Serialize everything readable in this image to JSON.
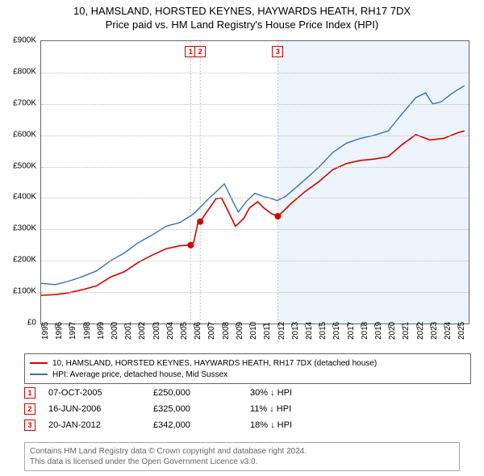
{
  "title_line1": "10, HAMSLAND, HORSTED KEYNES, HAYWARDS HEATH, RH17 7DX",
  "title_line2": "Price paid vs. HM Land Registry's House Price Index (HPI)",
  "chart": {
    "xlim": [
      1995,
      2025.8
    ],
    "ylim": [
      0,
      900
    ],
    "y_ticks": [
      0,
      100,
      200,
      300,
      400,
      500,
      600,
      700,
      800,
      900
    ],
    "y_tick_labels": [
      "£0",
      "£100K",
      "£200K",
      "£300K",
      "£400K",
      "£500K",
      "£600K",
      "£700K",
      "£800K",
      "£900K"
    ],
    "x_ticks": [
      1995,
      1996,
      1997,
      1998,
      1999,
      2000,
      2001,
      2002,
      2003,
      2004,
      2005,
      2006,
      2007,
      2008,
      2009,
      2010,
      2011,
      2012,
      2013,
      2014,
      2015,
      2016,
      2017,
      2018,
      2019,
      2020,
      2021,
      2022,
      2023,
      2024,
      2025
    ],
    "shade_start": 2012.05,
    "background": "#ffffff",
    "shade_color": "#eef4fb",
    "grid_color": "#bfbfbf",
    "series": [
      {
        "name": "paid",
        "color": "#d40000",
        "width": 1.6,
        "points": [
          [
            1995,
            90
          ],
          [
            1996,
            92
          ],
          [
            1997,
            98
          ],
          [
            1998,
            108
          ],
          [
            1999,
            120
          ],
          [
            2000,
            148
          ],
          [
            2001,
            165
          ],
          [
            2002,
            195
          ],
          [
            2003,
            218
          ],
          [
            2004,
            238
          ],
          [
            2005,
            248
          ],
          [
            2005.77,
            250
          ],
          [
            2006,
            260
          ],
          [
            2006.3,
            322
          ],
          [
            2006.46,
            325
          ],
          [
            2007,
            360
          ],
          [
            2007.6,
            398
          ],
          [
            2008,
            400
          ],
          [
            2008.5,
            355
          ],
          [
            2009,
            310
          ],
          [
            2009.6,
            335
          ],
          [
            2010,
            368
          ],
          [
            2010.6,
            388
          ],
          [
            2011,
            370
          ],
          [
            2011.6,
            350
          ],
          [
            2012.05,
            342
          ],
          [
            2012.5,
            360
          ],
          [
            2013,
            382
          ],
          [
            2014,
            420
          ],
          [
            2015,
            452
          ],
          [
            2016,
            490
          ],
          [
            2017,
            510
          ],
          [
            2018,
            520
          ],
          [
            2019,
            524
          ],
          [
            2020,
            532
          ],
          [
            2021,
            570
          ],
          [
            2022,
            602
          ],
          [
            2023,
            585
          ],
          [
            2024,
            590
          ],
          [
            2025,
            608
          ],
          [
            2025.5,
            614
          ]
        ]
      },
      {
        "name": "hpi",
        "color": "#3b6fb6",
        "width": 1.4,
        "points": [
          [
            1995,
            128
          ],
          [
            1996,
            124
          ],
          [
            1997,
            135
          ],
          [
            1998,
            150
          ],
          [
            1999,
            168
          ],
          [
            2000,
            200
          ],
          [
            2001,
            225
          ],
          [
            2002,
            258
          ],
          [
            2003,
            282
          ],
          [
            2004,
            310
          ],
          [
            2005,
            322
          ],
          [
            2006,
            350
          ],
          [
            2007,
            395
          ],
          [
            2007.8,
            428
          ],
          [
            2008.2,
            445
          ],
          [
            2008.8,
            390
          ],
          [
            2009.2,
            355
          ],
          [
            2009.8,
            390
          ],
          [
            2010.4,
            415
          ],
          [
            2011,
            405
          ],
          [
            2011.6,
            398
          ],
          [
            2012,
            392
          ],
          [
            2012.6,
            405
          ],
          [
            2013,
            420
          ],
          [
            2014,
            458
          ],
          [
            2015,
            498
          ],
          [
            2016,
            545
          ],
          [
            2017,
            575
          ],
          [
            2018,
            590
          ],
          [
            2019,
            600
          ],
          [
            2020,
            614
          ],
          [
            2021,
            668
          ],
          [
            2022,
            720
          ],
          [
            2022.7,
            735
          ],
          [
            2023.2,
            700
          ],
          [
            2023.8,
            706
          ],
          [
            2024.5,
            730
          ],
          [
            2025,
            745
          ],
          [
            2025.5,
            758
          ]
        ]
      }
    ],
    "sale_markers": [
      {
        "n": "1",
        "x": 2005.77,
        "y": 250,
        "color": "#d40000"
      },
      {
        "n": "2",
        "x": 2006.46,
        "y": 325,
        "color": "#d40000"
      },
      {
        "n": "3",
        "x": 2012.05,
        "y": 342,
        "color": "#d40000"
      }
    ]
  },
  "legend": {
    "paid": "10, HAMSLAND, HORSTED KEYNES, HAYWARDS HEATH, RH17 7DX (detached house)",
    "hpi": "HPI: Average price, detached house, Mid Sussex",
    "paid_color": "#d40000",
    "hpi_color": "#3b6fb6"
  },
  "sales": [
    {
      "n": "1",
      "date": "07-OCT-2005",
      "price": "£250,000",
      "delta": "30% ↓ HPI",
      "color": "#d40000"
    },
    {
      "n": "2",
      "date": "16-JUN-2006",
      "price": "£325,000",
      "delta": "11% ↓ HPI",
      "color": "#d40000"
    },
    {
      "n": "3",
      "date": "20-JAN-2012",
      "price": "£342,000",
      "delta": "18% ↓ HPI",
      "color": "#d40000"
    }
  ],
  "attribution_line1": "Contains HM Land Registry data © Crown copyright and database right 2024.",
  "attribution_line2": "This data is licensed under the Open Government Licence v3.0."
}
